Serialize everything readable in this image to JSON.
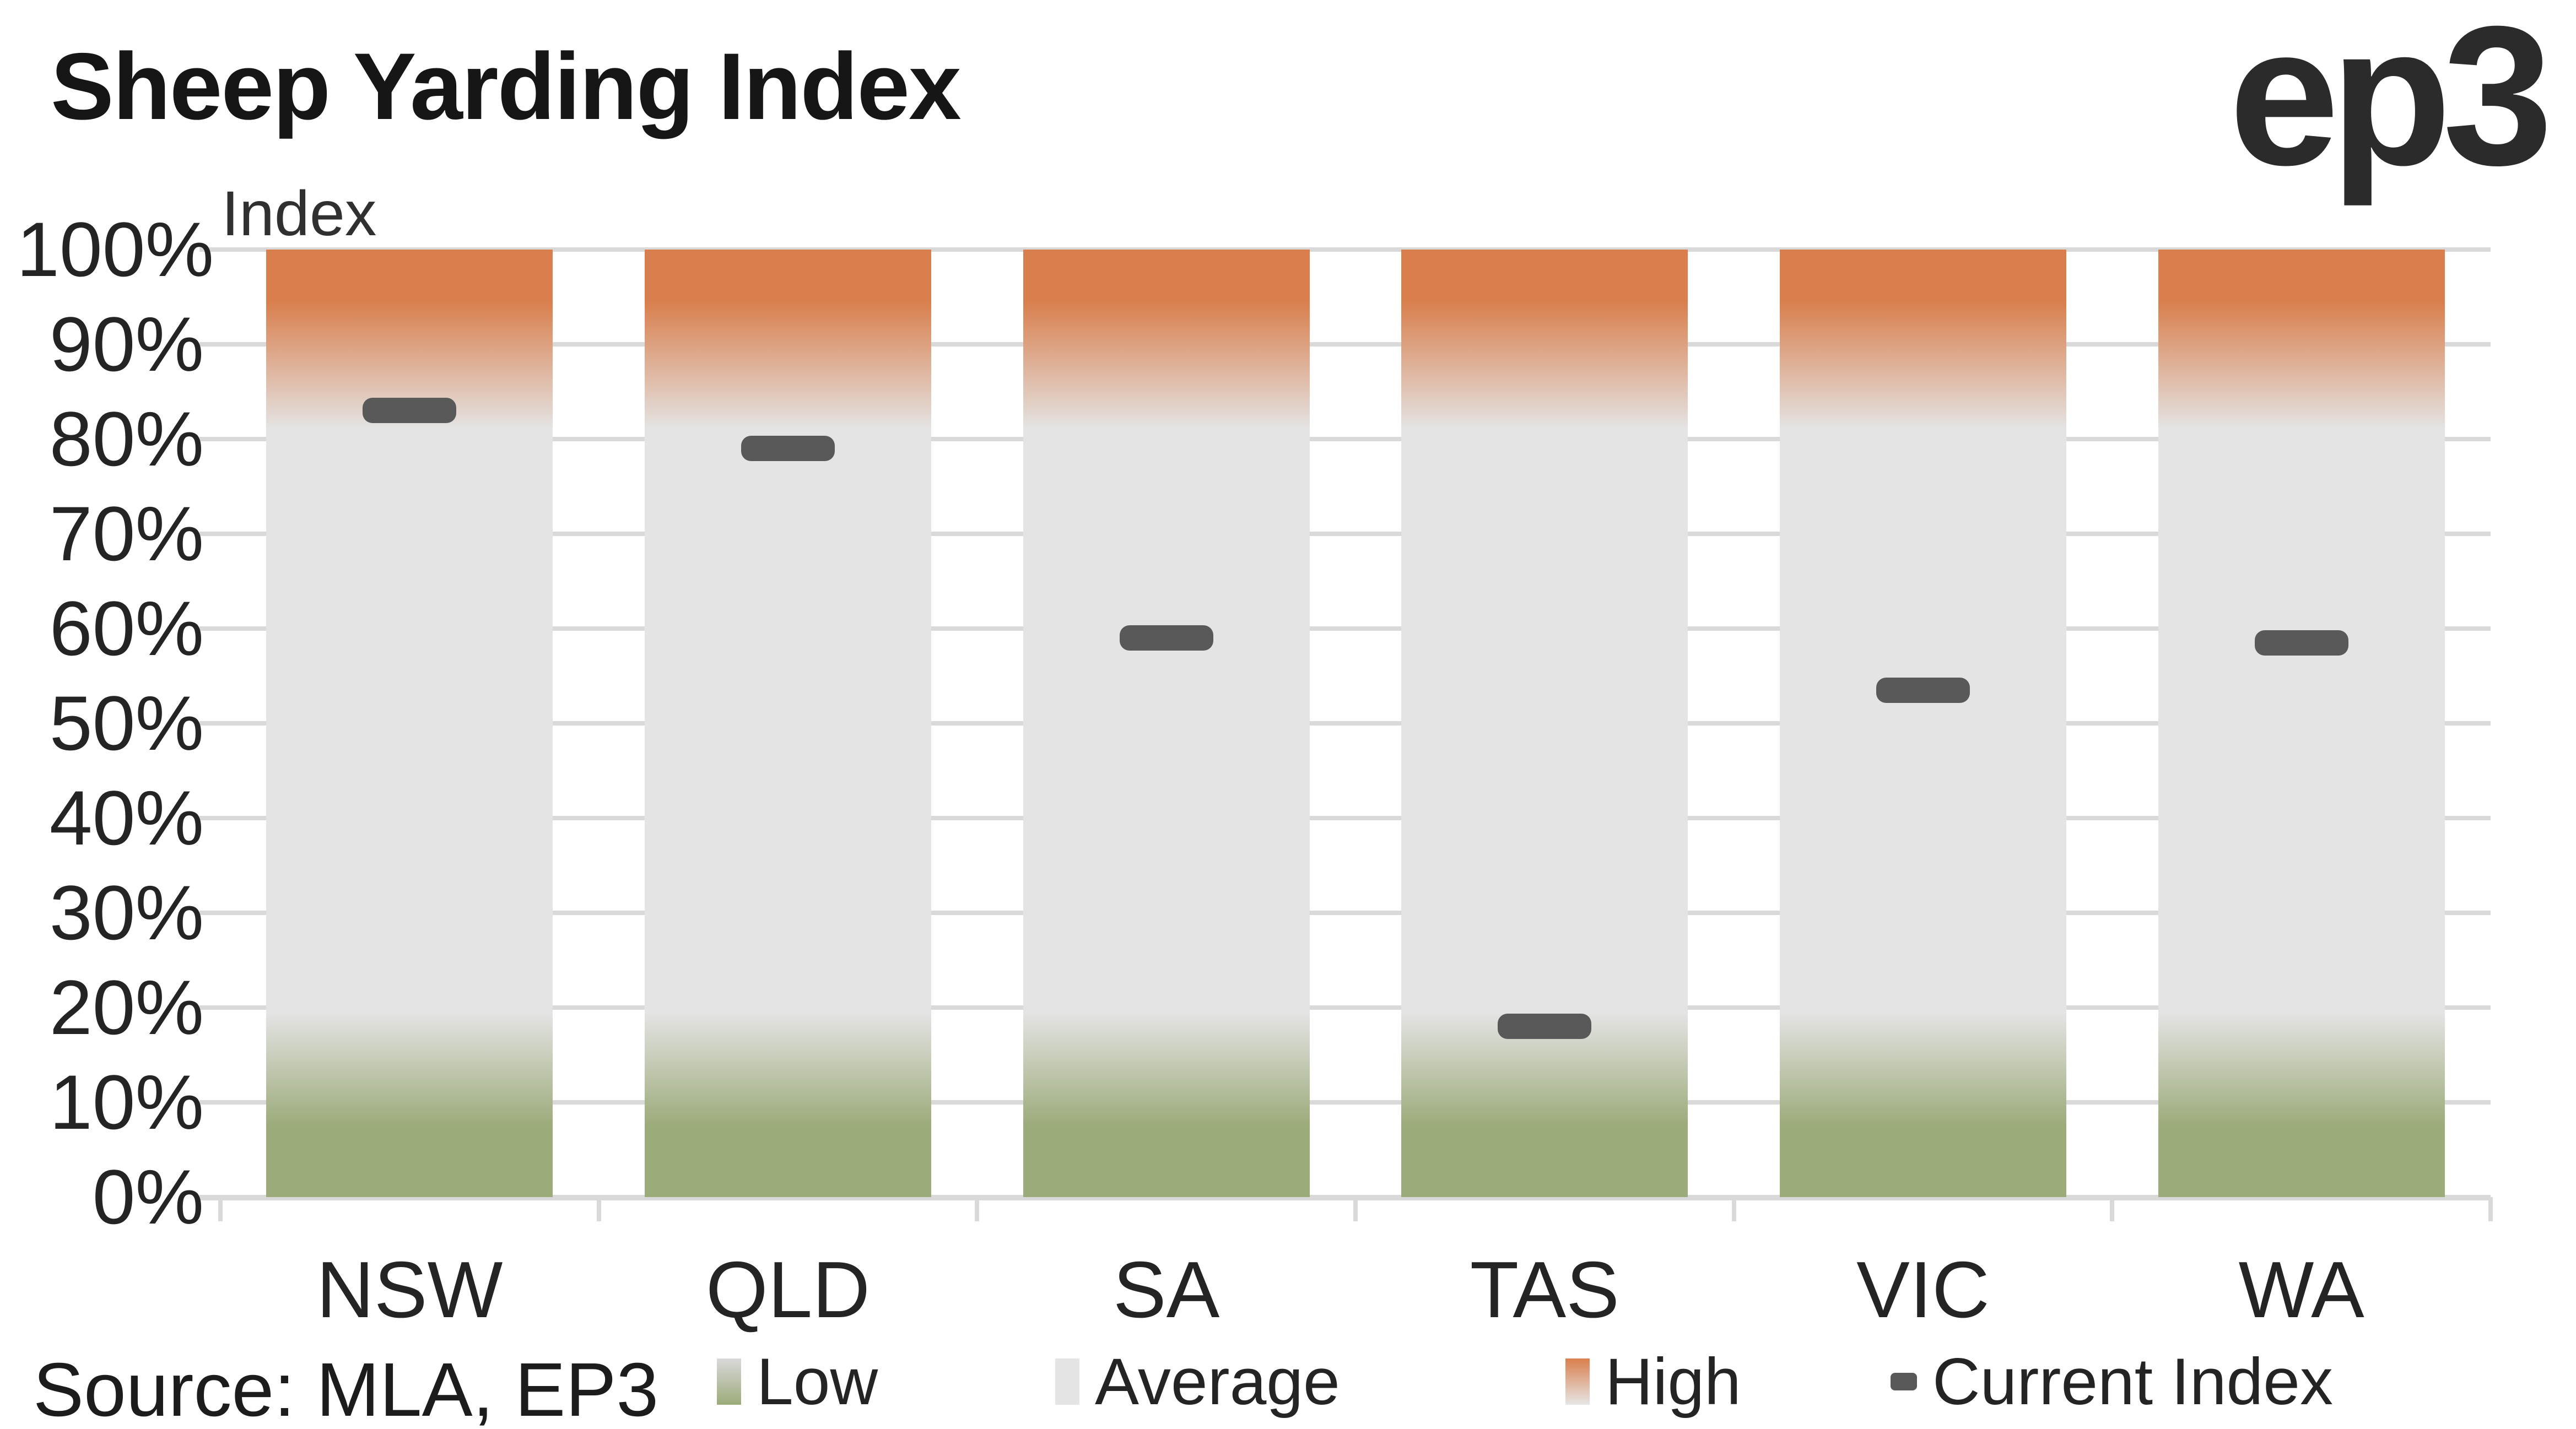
{
  "title": "Sheep Yarding Index",
  "logo_text": "ep3",
  "axis_title": "Index",
  "source_text": "Source: MLA, EP3",
  "chart_data": {
    "type": "bar",
    "title": "Sheep Yarding Index",
    "ylabel": "Index",
    "ylim": [
      0,
      100
    ],
    "y_ticks": [
      "0%",
      "10%",
      "20%",
      "30%",
      "40%",
      "50%",
      "60%",
      "70%",
      "80%",
      "90%",
      "100%"
    ],
    "grid": true,
    "legend_position": "bottom",
    "categories": [
      "NSW",
      "QLD",
      "SA",
      "TAS",
      "VIC",
      "WA"
    ],
    "series": [
      {
        "name": "Current Index",
        "style": "dash-marker",
        "unit": "%",
        "values": [
          83,
          79,
          59,
          18,
          53.5,
          58.5
        ]
      }
    ],
    "background_zones": [
      {
        "label": "Low",
        "range_pct": [
          0,
          20
        ],
        "color": "#9cab7a",
        "style": "fades up into Average"
      },
      {
        "label": "Average",
        "range_pct": [
          20,
          80
        ],
        "color": "#e4e4e4",
        "style": "solid"
      },
      {
        "label": "High",
        "range_pct": [
          80,
          100
        ],
        "color": "#d97f4d",
        "style": "fades down into Average"
      }
    ]
  },
  "legend": {
    "items": [
      {
        "label": "Low"
      },
      {
        "label": "Average"
      },
      {
        "label": "High"
      },
      {
        "label": "Current Index"
      }
    ]
  },
  "colors": {
    "high_orange": "#d97f4d",
    "average_gray": "#e4e4e4",
    "low_green": "#9cab7a",
    "marker_dark": "#595959",
    "gridline": "#d9d9d9",
    "text": "#262626"
  }
}
